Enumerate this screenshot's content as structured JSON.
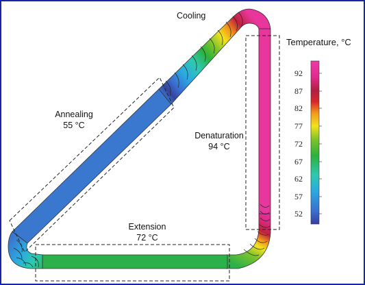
{
  "labels": {
    "cooling": "Cooling",
    "annealing": "Annealing",
    "annealing_temp": "55 °C",
    "denaturation": "Denaturation",
    "denaturation_temp": "94 °C",
    "extension": "Extension",
    "extension_temp": "72 °C"
  },
  "colorbar": {
    "title": "Temperature, °C",
    "ticks": [
      "92",
      "87",
      "82",
      "77",
      "72",
      "67",
      "62",
      "57",
      "52"
    ],
    "range": [
      49,
      96
    ],
    "colors": [
      "#3a3ea0",
      "#3b6fd0",
      "#2aa9e2",
      "#2ec9b0",
      "#2cb13c",
      "#7ec42a",
      "#f2e21e",
      "#f29a1a",
      "#d8262a",
      "#b02040",
      "#e02a8c",
      "#ee3aa8"
    ]
  },
  "zone_colors": {
    "denaturation": "#e8369c",
    "extension": "#2cb04a",
    "annealing": "#3a78cf"
  }
}
